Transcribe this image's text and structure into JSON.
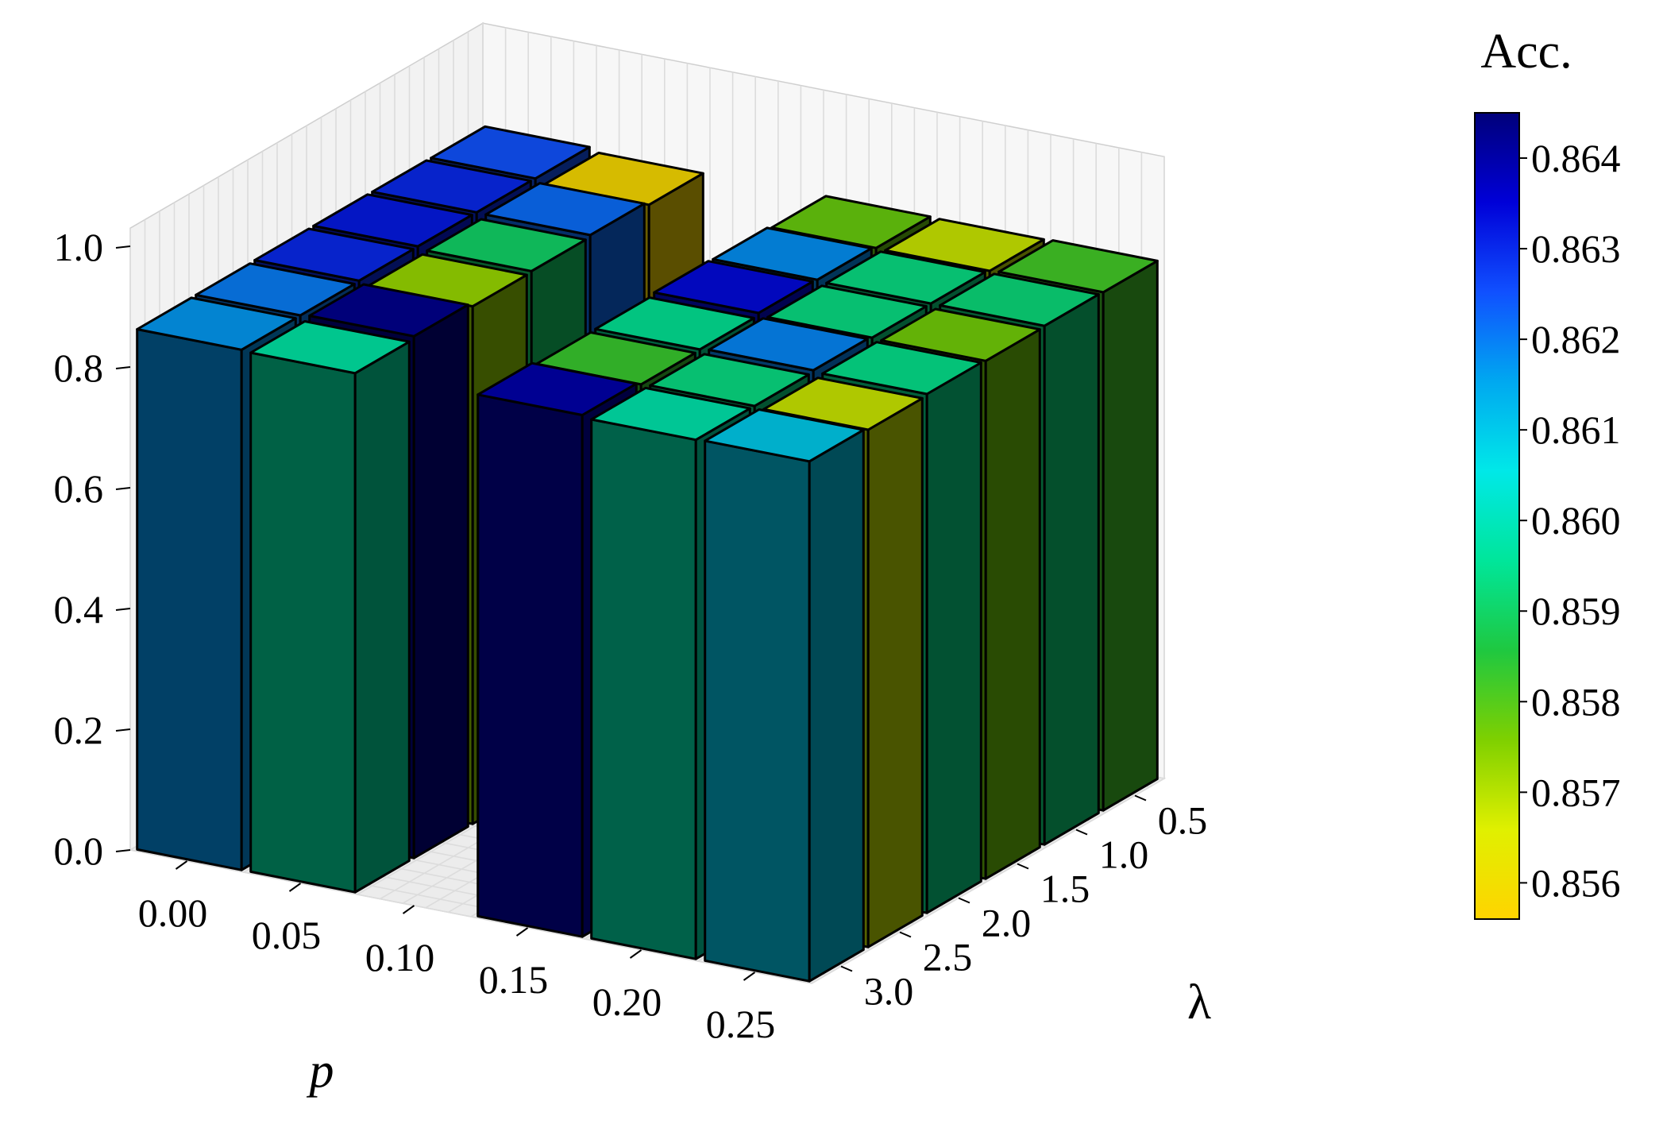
{
  "chart_data": {
    "type": "bar3d",
    "xlabel": "p",
    "ylabel": "λ",
    "x": [
      "0.00",
      "0.05",
      "0.10",
      "0.15",
      "0.20",
      "0.25"
    ],
    "y": [
      "0.5",
      "1.0",
      "1.5",
      "2.0",
      "2.5",
      "3.0"
    ],
    "zlim": [
      0.0,
      1.0
    ],
    "z_ticks": [
      "0.0",
      "0.2",
      "0.4",
      "0.6",
      "0.8",
      "1.0"
    ],
    "grid": true,
    "colorbar": {
      "title": "Acc.",
      "range": [
        0.8556,
        0.8645
      ],
      "ticks": [
        "0.856",
        "0.857",
        "0.858",
        "0.859",
        "0.860",
        "0.861",
        "0.862",
        "0.863",
        "0.864"
      ],
      "colors": [
        "#ffd400",
        "#e0f000",
        "#7fd000",
        "#1fc840",
        "#00e69a",
        "#00e8e8",
        "#00a8f0",
        "#1050ff",
        "#0000d8",
        "#00007a"
      ]
    },
    "values": [
      {
        "p": "0.00",
        "lambda": "3.0",
        "acc": 0.8617
      },
      {
        "p": "0.05",
        "lambda": "3.0",
        "acc": 0.8597
      },
      {
        "p": "0.00",
        "lambda": "2.5",
        "acc": 0.862
      },
      {
        "p": "0.05",
        "lambda": "2.5",
        "acc": 0.8643
      },
      {
        "p": "0.00",
        "lambda": "2.0",
        "acc": 0.863
      },
      {
        "p": "0.05",
        "lambda": "2.0",
        "acc": 0.8573
      },
      {
        "p": "0.00",
        "lambda": "1.5",
        "acc": 0.8632
      },
      {
        "p": "0.05",
        "lambda": "1.5",
        "acc": 0.859
      },
      {
        "p": "0.00",
        "lambda": "1.0",
        "acc": 0.863
      },
      {
        "p": "0.05",
        "lambda": "1.0",
        "acc": 0.8622
      },
      {
        "p": "0.00",
        "lambda": "0.5",
        "acc": 0.8625
      },
      {
        "p": "0.05",
        "lambda": "0.5",
        "acc": 0.8558
      },
      {
        "p": "0.15",
        "lambda": "3.0",
        "acc": 0.864
      },
      {
        "p": "0.20",
        "lambda": "3.0",
        "acc": 0.8598
      },
      {
        "p": "0.25",
        "lambda": "3.0",
        "acc": 0.861
      },
      {
        "p": "0.15",
        "lambda": "2.5",
        "acc": 0.8583
      },
      {
        "p": "0.20",
        "lambda": "2.5",
        "acc": 0.8593
      },
      {
        "p": "0.25",
        "lambda": "2.5",
        "acc": 0.8568
      },
      {
        "p": "0.15",
        "lambda": "2.0",
        "acc": 0.8595
      },
      {
        "p": "0.20",
        "lambda": "2.0",
        "acc": 0.8619
      },
      {
        "p": "0.25",
        "lambda": "2.0",
        "acc": 0.8594
      },
      {
        "p": "0.15",
        "lambda": "1.5",
        "acc": 0.8634
      },
      {
        "p": "0.20",
        "lambda": "1.5",
        "acc": 0.8593
      },
      {
        "p": "0.25",
        "lambda": "1.5",
        "acc": 0.8577
      },
      {
        "p": "0.15",
        "lambda": "1.0",
        "acc": 0.8618
      },
      {
        "p": "0.20",
        "lambda": "1.0",
        "acc": 0.8593
      },
      {
        "p": "0.25",
        "lambda": "1.0",
        "acc": 0.8592
      },
      {
        "p": "0.15",
        "lambda": "0.5",
        "acc": 0.8578
      },
      {
        "p": "0.20",
        "lambda": "0.5",
        "acc": 0.8568
      },
      {
        "p": "0.25",
        "lambda": "0.5",
        "acc": 0.8582
      }
    ]
  }
}
